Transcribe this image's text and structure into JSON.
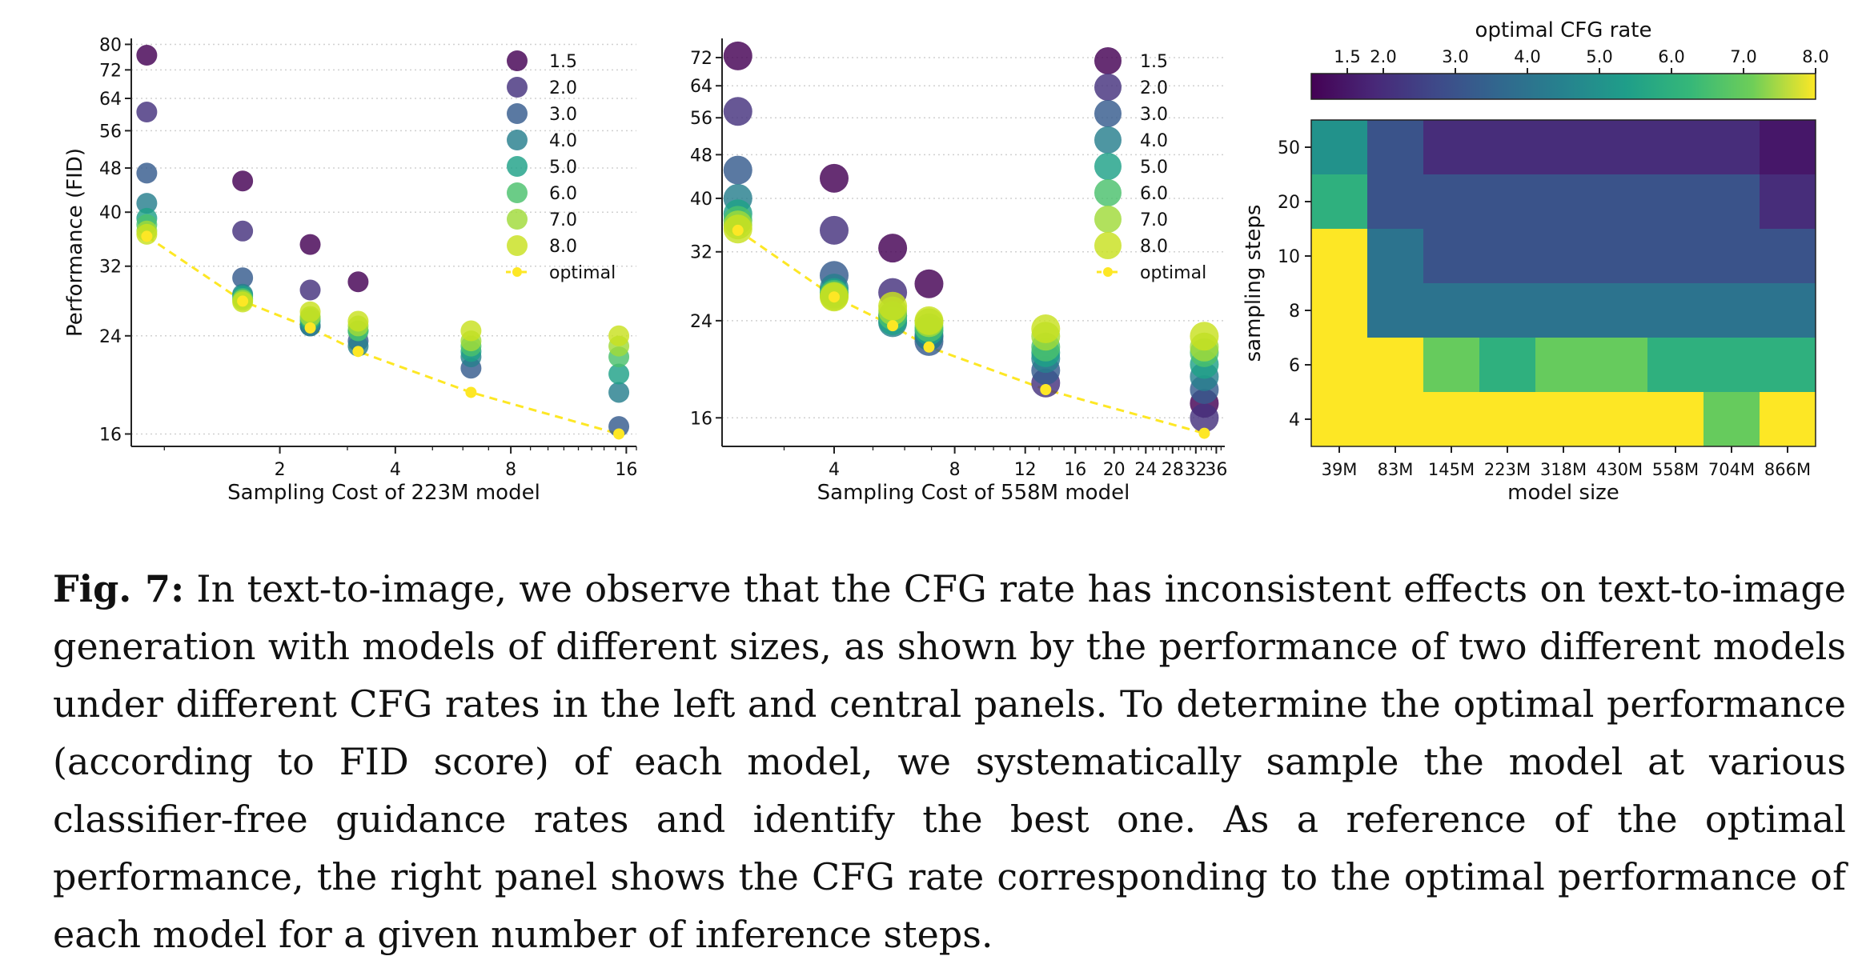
{
  "figure": {
    "caption_label": "Fig. 7:",
    "caption_text": "In text-to-image, we observe that the CFG rate has inconsistent effects on text-to-image generation with models of different sizes, as shown by the performance of two different models under different CFG rates in the left and central panels. To determine the optimal performance (according to FID score) of each model, we systematically sample the model at various classifier-free guidance rates and identify the best one. As a reference of the optimal performance, the right panel shows the CFG rate corresponding to the optimal performance of each model for a given number of inference steps."
  },
  "chart_data": [
    {
      "type": "scatter",
      "xlabel": "Sampling Cost of 223M model",
      "ylabel": "Performance (FID)",
      "xscale": "log",
      "yscale": "log",
      "xticks": [
        2,
        4,
        8,
        16
      ],
      "yticks": [
        16,
        24,
        32,
        40,
        48,
        56,
        64,
        72,
        80
      ],
      "xlim": [
        0.82,
        17
      ],
      "ylim": [
        15.2,
        82
      ],
      "grid": "y-dotted",
      "legend": "top-right",
      "x": [
        0.9,
        1.6,
        2.4,
        3.2,
        6.3,
        15.3
      ],
      "series": [
        {
          "name": "1.5",
          "color": "#440154",
          "values": [
            76.5,
            45.5,
            35,
            30,
            null,
            null
          ]
        },
        {
          "name": "2.0",
          "color": "#46327e",
          "values": [
            60.5,
            37,
            29,
            null,
            null,
            null
          ]
        },
        {
          "name": "3.0",
          "color": "#365c8d",
          "values": [
            47,
            30.5,
            25,
            23.5,
            21,
            16.5
          ]
        },
        {
          "name": "4.0",
          "color": "#277f8e",
          "values": [
            41.5,
            28.5,
            25,
            23,
            22,
            19
          ]
        },
        {
          "name": "5.0",
          "color": "#1fa187",
          "values": [
            39,
            28.3,
            25.5,
            24.5,
            22.5,
            20.5
          ]
        },
        {
          "name": "6.0",
          "color": "#4ac16d",
          "values": [
            38,
            28,
            25.8,
            24.5,
            23,
            22
          ]
        },
        {
          "name": "7.0",
          "color": "#a0da39",
          "values": [
            37,
            27.8,
            26,
            25,
            23.5,
            23
          ]
        },
        {
          "name": "8.0",
          "color": "#c8e020",
          "values": [
            36.5,
            27.6,
            26.5,
            25.5,
            24.5,
            24
          ]
        },
        {
          "name": "optimal",
          "color": "#fde725",
          "values": [
            36.2,
            27.7,
            24.8,
            22.5,
            19,
            16
          ]
        }
      ]
    },
    {
      "type": "scatter",
      "xlabel": "Sampling Cost of 558M model",
      "xscale": "log",
      "yscale": "log",
      "xticks": [
        4,
        8,
        12,
        16,
        20,
        24,
        28,
        32,
        36
      ],
      "yticks": [
        16,
        24,
        32,
        40,
        48,
        56,
        64,
        72
      ],
      "xlim": [
        2.1,
        37.8
      ],
      "ylim": [
        14.2,
        78
      ],
      "grid": "y-dotted",
      "legend": "top-right",
      "x": [
        2.3,
        4,
        5.6,
        6.9,
        13.5,
        33.6
      ],
      "series": [
        {
          "name": "1.5",
          "color": "#440154",
          "values": [
            72.5,
            43.5,
            32.5,
            28,
            null,
            17
          ]
        },
        {
          "name": "2.0",
          "color": "#46327e",
          "values": [
            57.5,
            35,
            27,
            22.5,
            18.5,
            16
          ]
        },
        {
          "name": "3.0",
          "color": "#365c8d",
          "values": [
            45,
            29,
            24.5,
            22,
            19.5,
            18
          ]
        },
        {
          "name": "4.0",
          "color": "#277f8e",
          "values": [
            40,
            27.5,
            23.8,
            22.5,
            20.5,
            19
          ]
        },
        {
          "name": "5.0",
          "color": "#1fa187",
          "values": [
            37.5,
            27,
            24,
            23,
            21,
            20
          ]
        },
        {
          "name": "6.0",
          "color": "#4ac16d",
          "values": [
            36.5,
            26.8,
            24.5,
            23.3,
            21.5,
            21
          ]
        },
        {
          "name": "7.0",
          "color": "#a0da39",
          "values": [
            35.8,
            26.6,
            25,
            23.8,
            22.5,
            21.5
          ]
        },
        {
          "name": "8.0",
          "color": "#c8e020",
          "values": [
            35.2,
            26.5,
            25.5,
            24,
            23.2,
            22.5
          ]
        },
        {
          "name": "optimal",
          "color": "#fde725",
          "values": [
            35,
            26.5,
            23.5,
            21.5,
            18,
            15
          ]
        }
      ]
    },
    {
      "type": "heatmap",
      "title": "optimal CFG rate",
      "xlabel": "model size",
      "ylabel": "sampling steps",
      "categories": [
        "39M",
        "83M",
        "145M",
        "223M",
        "318M",
        "430M",
        "558M",
        "704M",
        "866M"
      ],
      "rows": [
        "50",
        "20",
        "10",
        "8",
        "6",
        "4"
      ],
      "values": [
        [
          5.0,
          3.0,
          2.0,
          2.0,
          2.0,
          2.0,
          2.0,
          2.0,
          1.5
        ],
        [
          6.0,
          3.0,
          3.0,
          3.0,
          3.0,
          3.0,
          3.0,
          3.0,
          2.0
        ],
        [
          8.0,
          4.0,
          3.0,
          3.0,
          3.0,
          3.0,
          3.0,
          3.0,
          3.0
        ],
        [
          8.0,
          4.0,
          4.0,
          4.0,
          4.0,
          4.0,
          4.0,
          4.0,
          4.0
        ],
        [
          8.0,
          8.0,
          7.0,
          6.0,
          7.0,
          7.0,
          6.0,
          6.0,
          6.0
        ],
        [
          8.0,
          8.0,
          8.0,
          8.0,
          8.0,
          8.0,
          8.0,
          7.0,
          8.0
        ]
      ],
      "colorbar": {
        "label": "optimal CFG rate",
        "ticks": [
          "1.5",
          "2.0",
          "3.0",
          "4.0",
          "5.0",
          "6.0",
          "7.0",
          "8.0"
        ],
        "range": [
          1.0,
          8.0
        ],
        "placement": "top"
      }
    }
  ]
}
